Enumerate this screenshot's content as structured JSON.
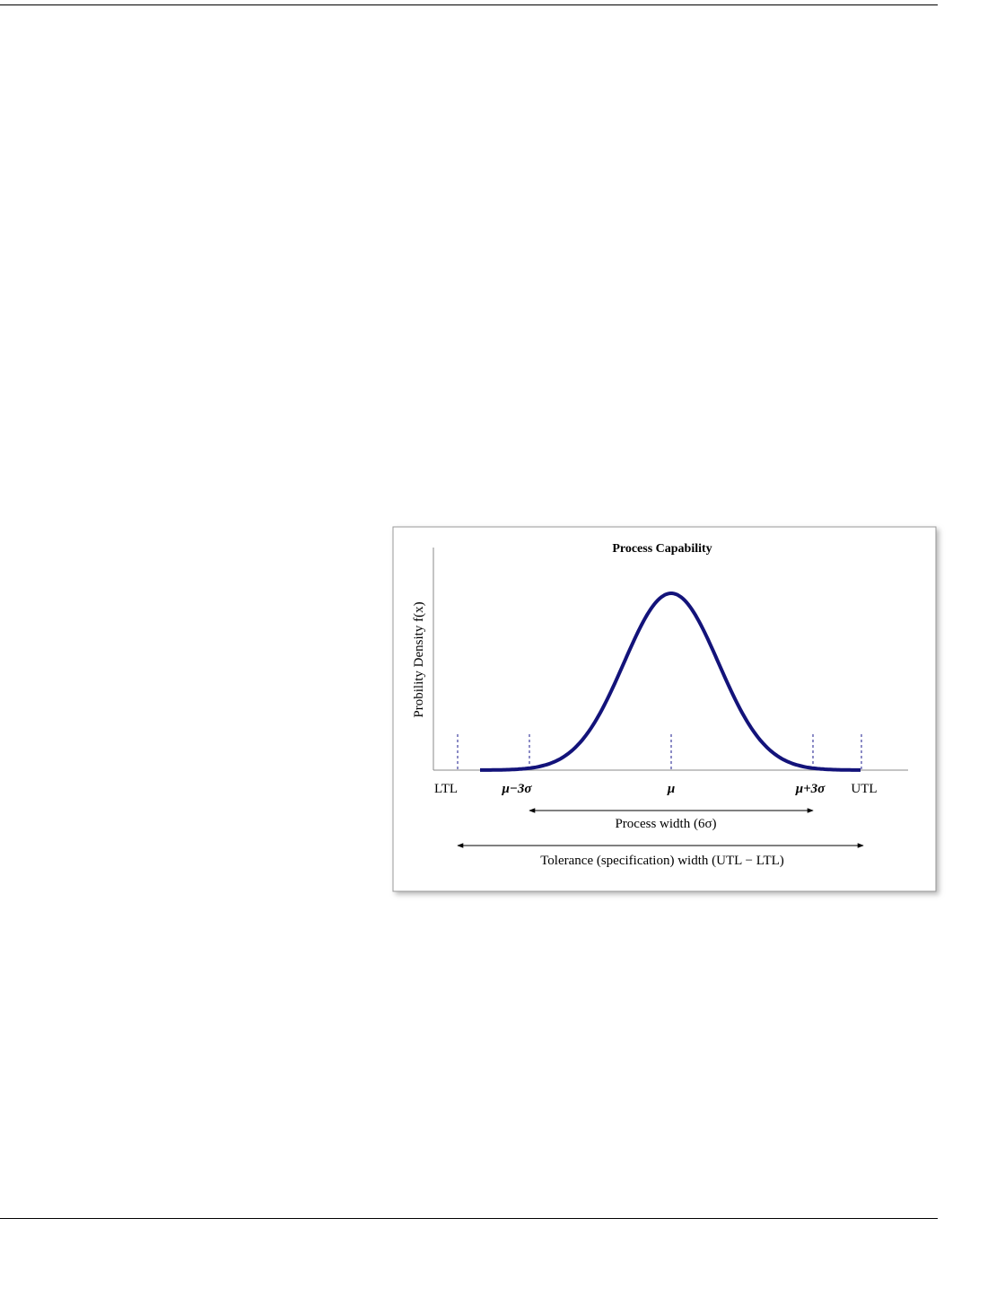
{
  "figure": {
    "title": "Process Capability",
    "y_label": "Probility Density f(x)",
    "x_labels": [
      "LTL",
      "μ−3σ",
      "μ",
      "μ+3σ",
      "UTL"
    ],
    "process_width": "Process width (6σ)",
    "tolerance_width": "Tolerance (specification) width (UTL − LTL)"
  }
}
